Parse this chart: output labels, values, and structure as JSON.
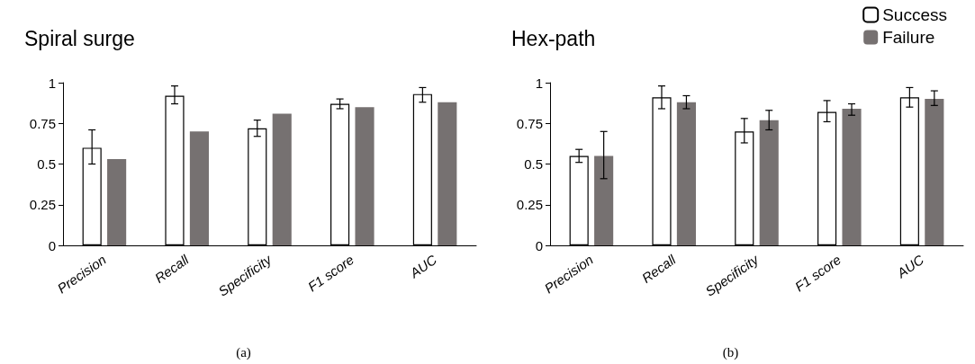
{
  "chart_data": [
    {
      "type": "bar",
      "title": "Spiral surge",
      "categories": [
        "Precision",
        "Recall",
        "Specificity",
        "F1 score",
        "AUC"
      ],
      "series": [
        {
          "color": "#ffffff",
          "values": [
            0.6,
            0.92,
            0.72,
            0.87,
            0.93
          ],
          "errors": [
            [
              0.5,
              0.71
            ],
            [
              0.87,
              0.98
            ],
            [
              0.67,
              0.77
            ],
            [
              0.84,
              0.9
            ],
            [
              0.88,
              0.97
            ]
          ]
        },
        {
          "color": "#767171",
          "values": [
            0.53,
            0.7,
            0.81,
            0.85,
            0.88
          ]
        }
      ],
      "ylim": [
        0,
        1
      ],
      "yticks": [
        0,
        0.25,
        0.5,
        0.75,
        1
      ],
      "grid": false,
      "legend": false,
      "annotations": [
        "(a)"
      ]
    },
    {
      "type": "bar",
      "title": "Hex-path",
      "categories": [
        "Precision",
        "Recall",
        "Specificity",
        "F1 score",
        "AUC"
      ],
      "series": [
        {
          "name": "Success",
          "color": "#ffffff",
          "values": [
            0.55,
            0.91,
            0.7,
            0.82,
            0.91
          ],
          "errors": [
            [
              0.51,
              0.59
            ],
            [
              0.84,
              0.98
            ],
            [
              0.63,
              0.78
            ],
            [
              0.76,
              0.89
            ],
            [
              0.85,
              0.97
            ]
          ]
        },
        {
          "name": "Failure",
          "color": "#767171",
          "values": [
            0.55,
            0.88,
            0.77,
            0.84,
            0.9
          ],
          "errors": [
            [
              0.41,
              0.7
            ],
            [
              0.84,
              0.92
            ],
            [
              0.71,
              0.83
            ],
            [
              0.8,
              0.87
            ],
            [
              0.86,
              0.95
            ]
          ]
        }
      ],
      "ylim": [
        0,
        1
      ],
      "yticks": [
        0,
        0.25,
        0.5,
        0.75,
        1
      ],
      "grid": false,
      "legend": "top right",
      "annotations": [
        "(b)"
      ]
    }
  ]
}
